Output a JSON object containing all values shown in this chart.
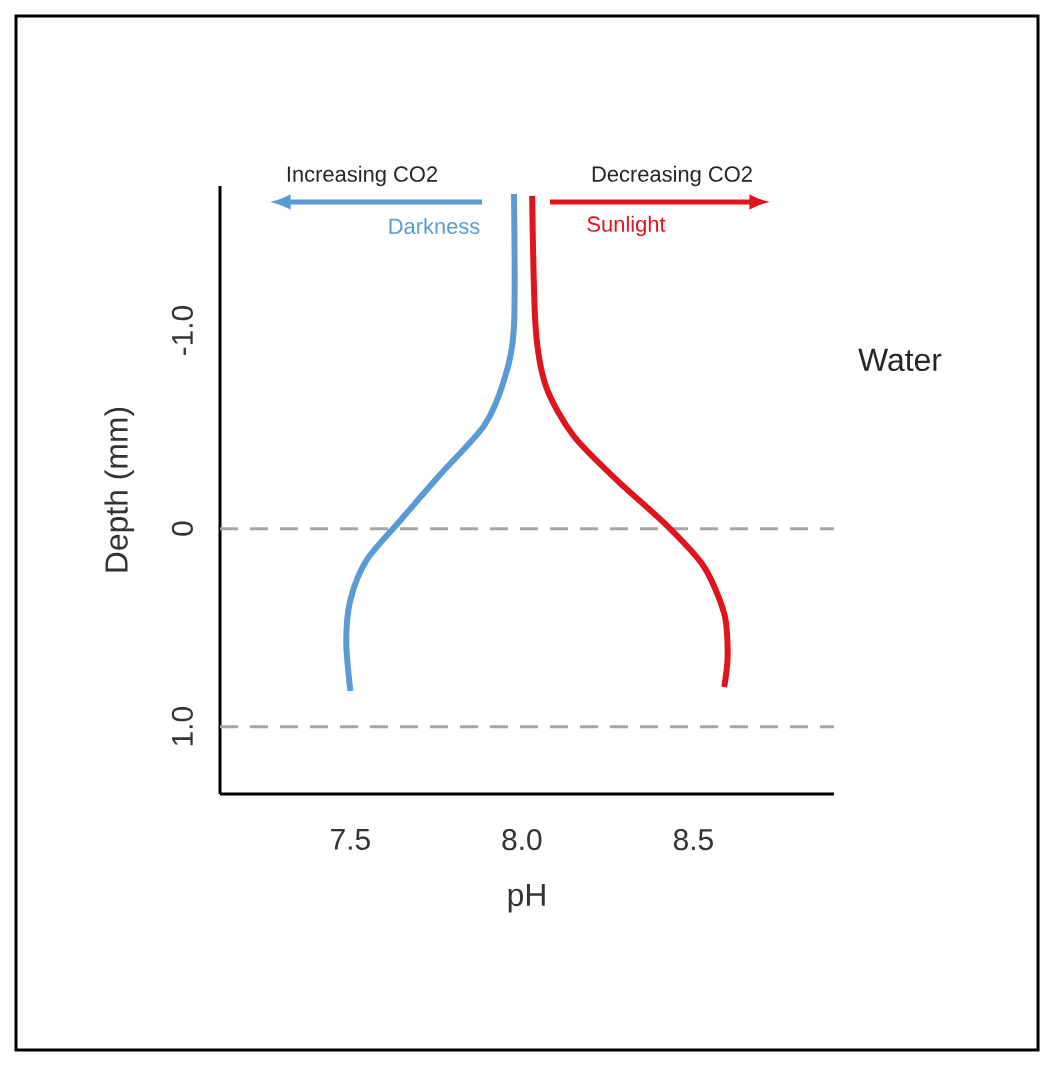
{
  "chart_data": {
    "type": "line",
    "xlabel": "pH",
    "ylabel": "Depth (mm)",
    "xlim": [
      7.12,
      8.91
    ],
    "xticks": [
      {
        "value": 7.5,
        "label": "7.5"
      },
      {
        "value": 8.0,
        "label": "8.0"
      },
      {
        "value": 8.5,
        "label": "8.5"
      }
    ],
    "ylim": [
      1.34,
      -1.73
    ],
    "yticks": [
      {
        "value": -1.0,
        "label": "-1.0"
      },
      {
        "value": 0,
        "label": "0"
      },
      {
        "value": 1.0,
        "label": "1.0"
      }
    ],
    "series": [
      {
        "name": "Darkness",
        "color": "#5b9bd5",
        "x": [
          7.977,
          7.977,
          7.948,
          7.89,
          7.76,
          7.645,
          7.547,
          7.5,
          7.488,
          7.5
        ],
        "values": [
          -1.69,
          -1.02,
          -0.75,
          -0.52,
          -0.27,
          -0.04,
          0.16,
          0.36,
          0.57,
          0.82
        ]
      },
      {
        "name": "Sunlight",
        "color": "#e0141e",
        "x": [
          8.03,
          8.04,
          8.07,
          8.15,
          8.28,
          8.42,
          8.53,
          8.59,
          8.6,
          8.59
        ],
        "values": [
          -1.68,
          -1.02,
          -0.72,
          -0.47,
          -0.24,
          -0.02,
          0.19,
          0.43,
          0.64,
          0.8
        ]
      }
    ],
    "ref_lines": [
      {
        "axis": "y",
        "value": 0,
        "color": "#a6a6a6",
        "line_style": "dashed"
      },
      {
        "axis": "y",
        "value": 1.0,
        "color": "#a6a6a6",
        "line_style": "dashed"
      }
    ],
    "annotations": [
      "Increasing CO2",
      "Decreasing CO2",
      "Water"
    ],
    "grid": false,
    "marker": "none",
    "line_style": "solid"
  }
}
